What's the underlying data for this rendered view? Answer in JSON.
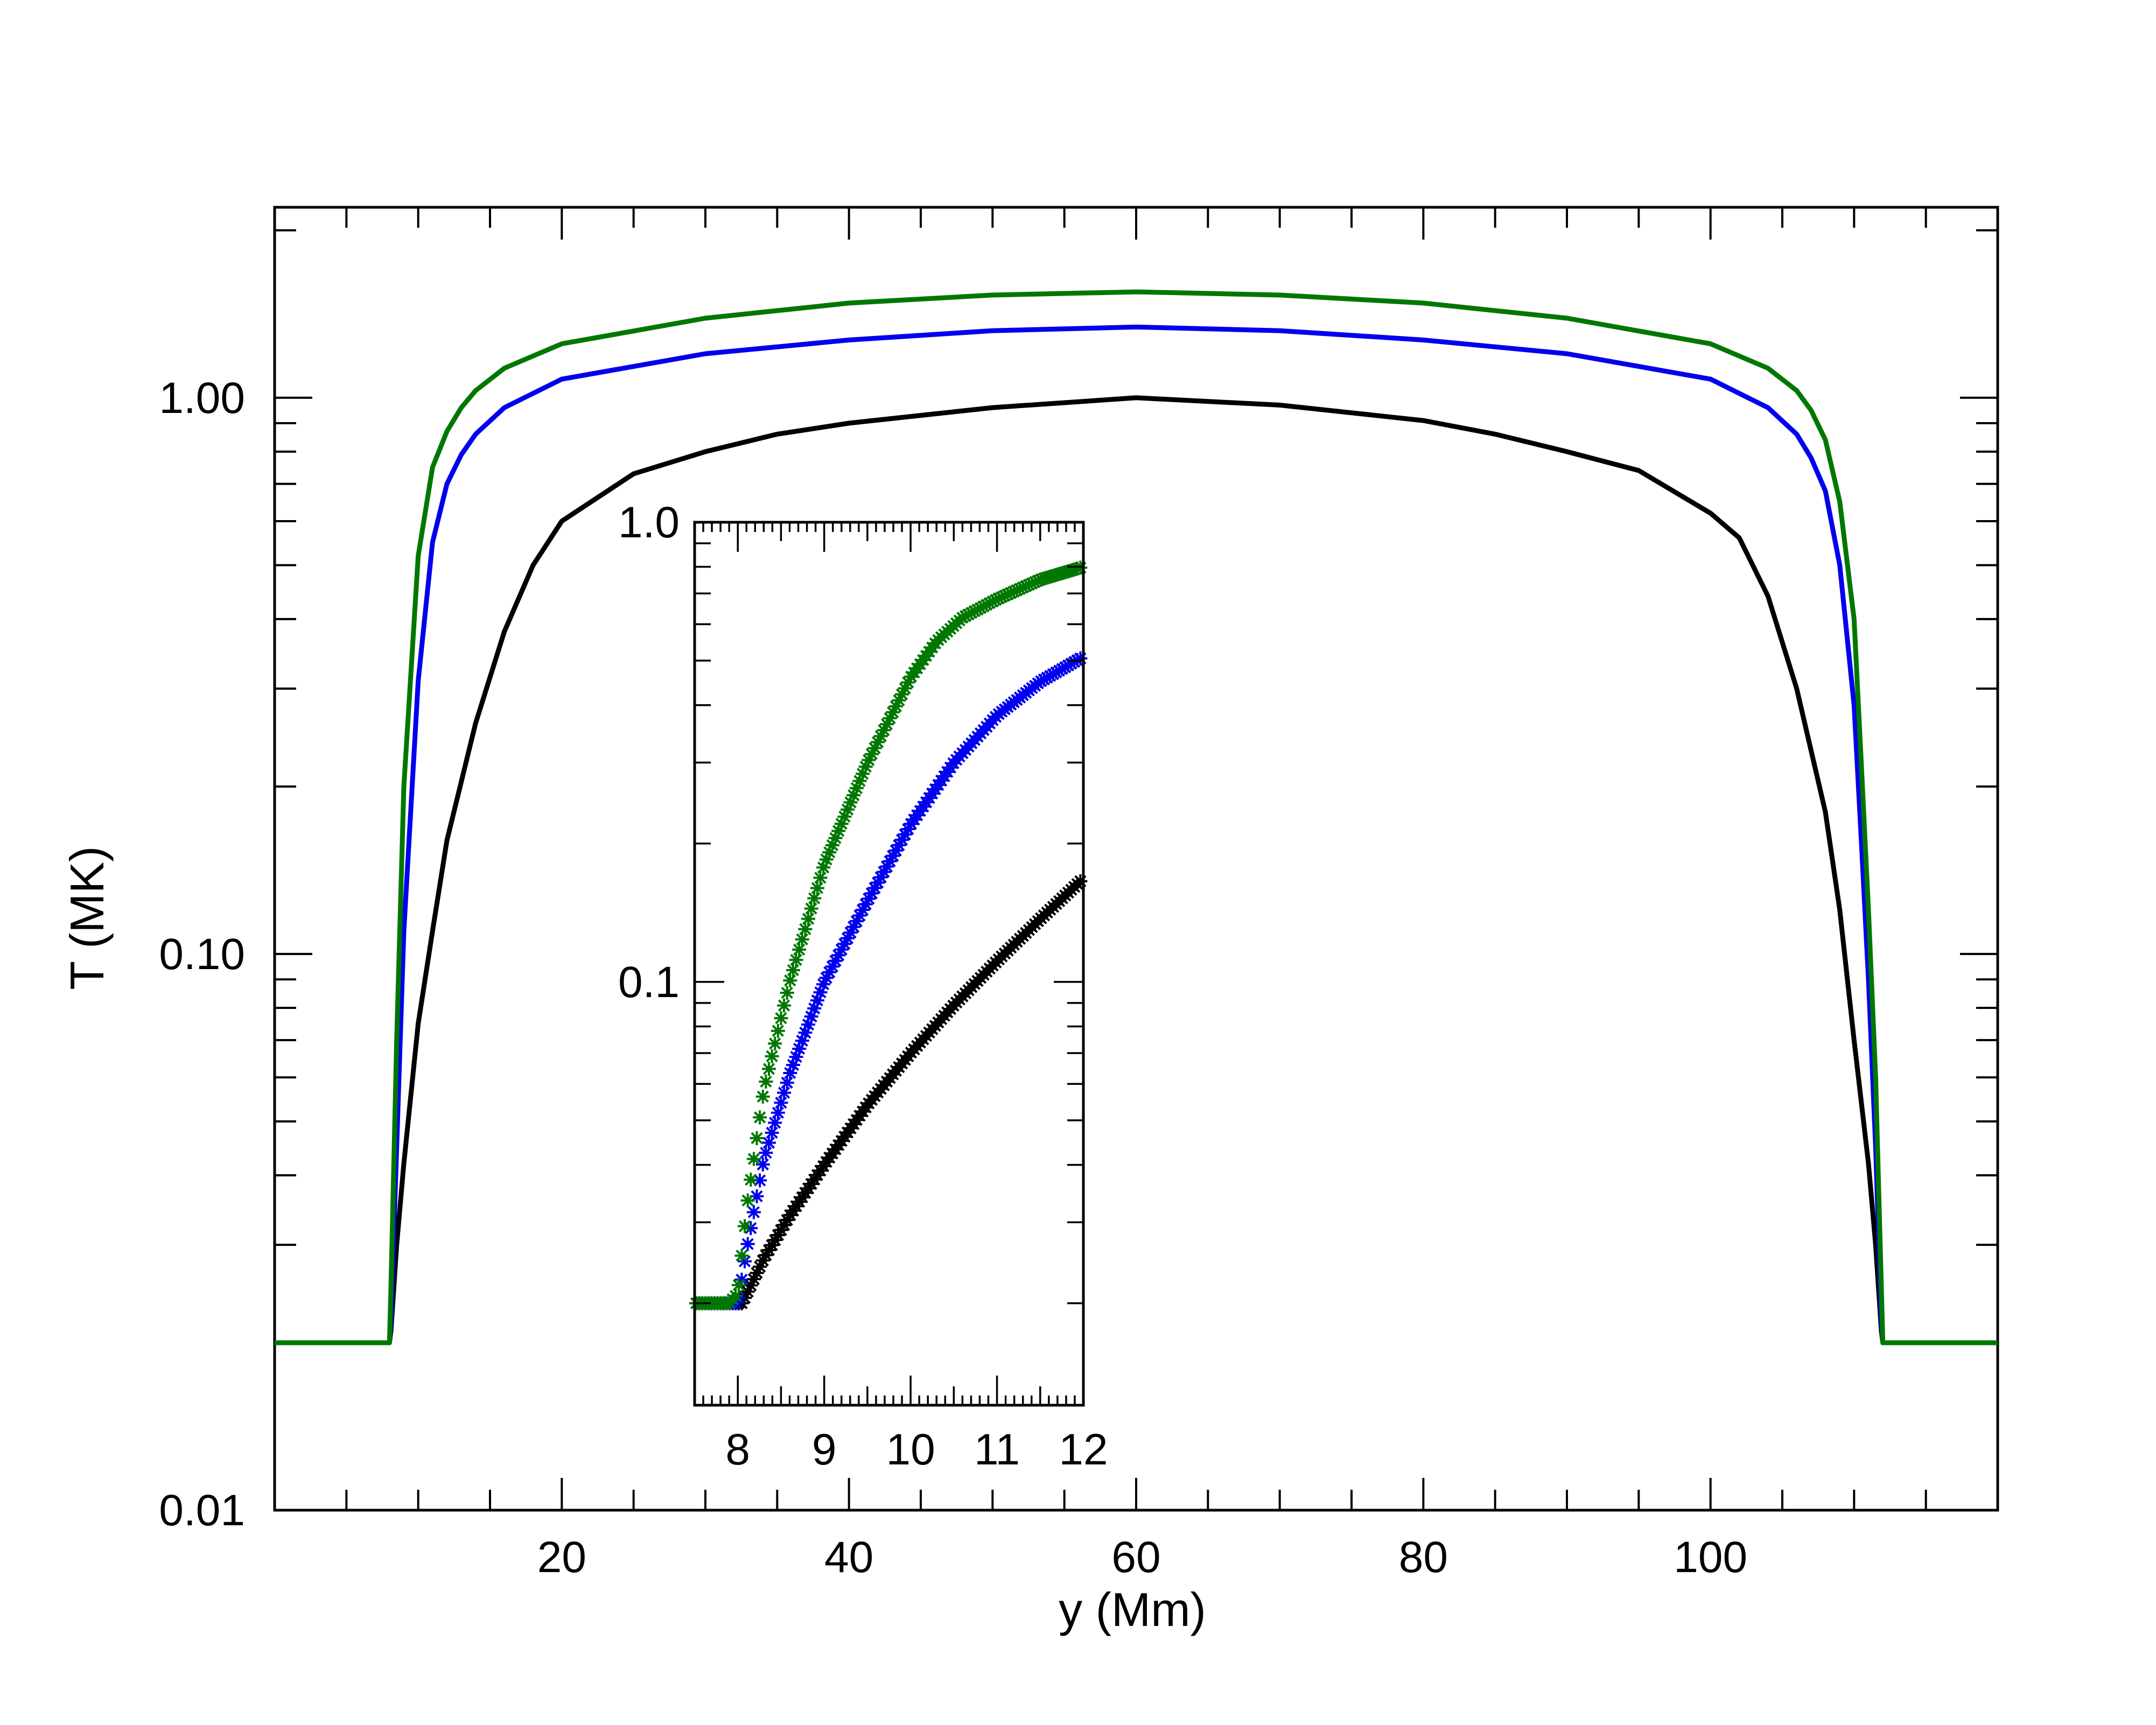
{
  "chart_data": {
    "type": "line",
    "title": "",
    "xlabel": "y (Mm)",
    "ylabel": "T (MK)",
    "xlim": [
      0,
      120
    ],
    "ylim": [
      0.01,
      2.2
    ],
    "yscale": "log",
    "grid": false,
    "legend": "none",
    "x_ticks": [
      20,
      40,
      60,
      80,
      100
    ],
    "x_tick_labels": [
      "20",
      "40",
      "60",
      "80",
      "100"
    ],
    "y_ticks": [
      0.01,
      0.1,
      1.0
    ],
    "y_tick_labels": [
      "0.01",
      "0.10",
      "1.00"
    ],
    "series": [
      {
        "name": "black",
        "color": "#000000",
        "x": [
          0,
          8,
          8.1,
          8.5,
          9,
          10,
          11,
          12,
          14,
          16,
          18,
          20,
          25,
          30,
          35,
          40,
          50,
          60,
          70,
          80,
          85,
          90,
          95,
          100,
          102,
          104,
          106,
          108,
          109,
          110,
          111,
          111.5,
          111.9,
          112,
          120
        ],
        "y": [
          0.02,
          0.02,
          0.021,
          0.03,
          0.042,
          0.075,
          0.11,
          0.16,
          0.26,
          0.38,
          0.5,
          0.6,
          0.73,
          0.8,
          0.86,
          0.9,
          0.96,
          1.0,
          0.97,
          0.91,
          0.86,
          0.8,
          0.74,
          0.62,
          0.56,
          0.44,
          0.3,
          0.18,
          0.12,
          0.07,
          0.042,
          0.03,
          0.021,
          0.02,
          0.02
        ]
      },
      {
        "name": "blue",
        "color": "#0000ee",
        "x": [
          0,
          8,
          8.1,
          8.5,
          9,
          10,
          11,
          12,
          13,
          14,
          16,
          20,
          30,
          40,
          50,
          60,
          70,
          80,
          90,
          100,
          104,
          106,
          107,
          108,
          109,
          110,
          110.5,
          111,
          111.5,
          111.9,
          112,
          120
        ],
        "y": [
          0.02,
          0.02,
          0.022,
          0.045,
          0.11,
          0.31,
          0.55,
          0.7,
          0.79,
          0.86,
          0.96,
          1.08,
          1.2,
          1.27,
          1.32,
          1.34,
          1.32,
          1.27,
          1.2,
          1.08,
          0.96,
          0.86,
          0.78,
          0.68,
          0.5,
          0.28,
          0.16,
          0.09,
          0.045,
          0.022,
          0.02,
          0.02
        ]
      },
      {
        "name": "green",
        "color": "#007700",
        "x": [
          0,
          8,
          8.1,
          8.5,
          9,
          10,
          11,
          12,
          13,
          14,
          16,
          20,
          30,
          40,
          50,
          60,
          70,
          80,
          90,
          100,
          104,
          106,
          107,
          108,
          109,
          110,
          110.5,
          111,
          111.5,
          111.9,
          112,
          120
        ],
        "y": [
          0.02,
          0.02,
          0.025,
          0.07,
          0.2,
          0.52,
          0.75,
          0.87,
          0.96,
          1.03,
          1.13,
          1.25,
          1.39,
          1.48,
          1.53,
          1.55,
          1.53,
          1.48,
          1.39,
          1.25,
          1.13,
          1.03,
          0.95,
          0.84,
          0.65,
          0.4,
          0.22,
          0.12,
          0.06,
          0.025,
          0.02,
          0.02
        ]
      }
    ],
    "inset": {
      "type": "scatter",
      "marker": "asterisk",
      "xlim": [
        7.5,
        12
      ],
      "ylim": [
        0.012,
        1.0
      ],
      "yscale": "log",
      "x_ticks": [
        8,
        9,
        10,
        11,
        12
      ],
      "x_tick_labels": [
        "8",
        "9",
        "10",
        "11",
        "12"
      ],
      "y_ticks": [
        0.1,
        1.0
      ],
      "y_tick_labels": [
        "0.1",
        "1.0"
      ],
      "series": [
        {
          "name": "black",
          "color": "#000000",
          "x": [
            7.5,
            7.9,
            8.05,
            8.3,
            8.6,
            9,
            9.5,
            10,
            10.5,
            11,
            11.5,
            12
          ],
          "y": [
            0.02,
            0.02,
            0.02,
            0.025,
            0.031,
            0.04,
            0.054,
            0.07,
            0.089,
            0.111,
            0.137,
            0.168
          ]
        },
        {
          "name": "blue",
          "color": "#0000ee",
          "x": [
            7.5,
            7.9,
            8.0,
            8.1,
            8.3,
            8.6,
            9,
            9.5,
            10,
            10.5,
            11,
            11.5,
            12
          ],
          "y": [
            0.02,
            0.02,
            0.02,
            0.026,
            0.041,
            0.063,
            0.1,
            0.15,
            0.22,
            0.3,
            0.38,
            0.45,
            0.51
          ]
        },
        {
          "name": "green",
          "color": "#007700",
          "x": [
            7.5,
            7.9,
            8.0,
            8.1,
            8.3,
            8.6,
            9,
            9.5,
            10,
            10.3,
            10.6,
            11,
            11.5,
            12
          ],
          "y": [
            0.02,
            0.02,
            0.021,
            0.032,
            0.058,
            0.1,
            0.18,
            0.3,
            0.46,
            0.55,
            0.62,
            0.68,
            0.75,
            0.8
          ]
        }
      ]
    }
  }
}
